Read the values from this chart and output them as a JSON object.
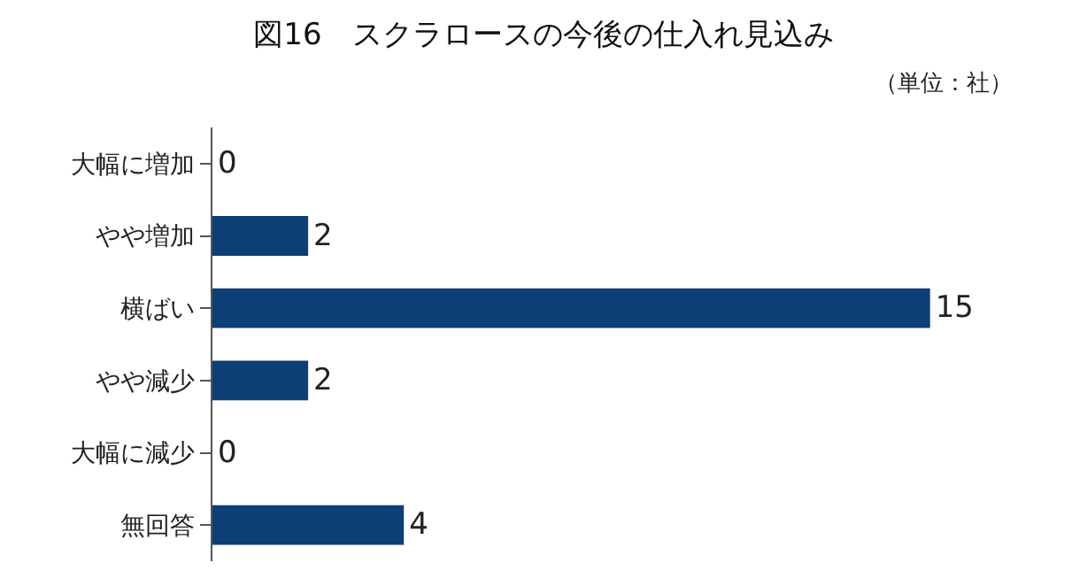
{
  "chart_data": {
    "type": "bar",
    "orientation": "horizontal",
    "title": "図16　スクラロースの今後の仕入れ見込み",
    "categories": [
      "大幅に増加",
      "やや増加",
      "横ばい",
      "やや減少",
      "大幅に減少",
      "無回答"
    ],
    "values": [
      0,
      2,
      15,
      2,
      0,
      4
    ],
    "color": "#0b3f75",
    "data_labels": true,
    "tick_labels": "y",
    "annotations": [
      "（単位：社）"
    ]
  }
}
